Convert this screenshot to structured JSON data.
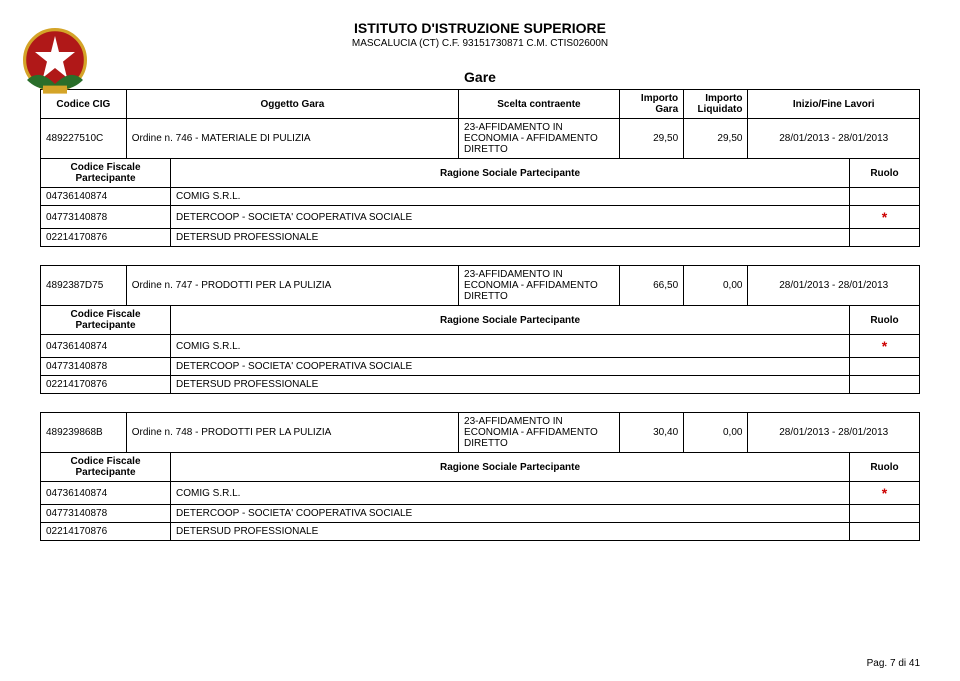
{
  "header": {
    "title": "ISTITUTO D'ISTRUZIONE SUPERIORE",
    "subtitle": "MASCALUCIA (CT) C.F. 93151730871 C.M. CTIS02600N"
  },
  "section_title": "Gare",
  "columns": {
    "cig": "Codice CIG",
    "oggetto": "Oggetto Gara",
    "scelta": "Scelta contraente",
    "importo_gara": "Importo Gara",
    "importo_liq": "Importo Liquidato",
    "inizio_fine": "Inizio/Fine Lavori",
    "codice_fiscale": "Codice Fiscale Partecipante",
    "ragione": "Ragione Sociale Partecipante",
    "ruolo": "Ruolo"
  },
  "blocks": [
    {
      "cig": "489227510C",
      "oggetto": "Ordine n. 746 - MATERIALE DI PULIZIA",
      "scelta": "23-AFFIDAMENTO IN ECONOMIA - AFFIDAMENTO DIRETTO",
      "importo_gara": "29,50",
      "importo_liq": "29,50",
      "date": "28/01/2013 - 28/01/2013",
      "rows": [
        {
          "cf": "04736140874",
          "rs": "COMIG S.R.L.",
          "star": false
        },
        {
          "cf": "04773140878",
          "rs": "DETERCOOP - SOCIETA' COOPERATIVA SOCIALE",
          "star": true
        },
        {
          "cf": "02214170876",
          "rs": "DETERSUD PROFESSIONALE",
          "star": false
        }
      ],
      "show_header": true
    },
    {
      "cig": "4892387D75",
      "oggetto": "Ordine n. 747 - PRODOTTI PER LA PULIZIA",
      "scelta": "23-AFFIDAMENTO IN ECONOMIA - AFFIDAMENTO DIRETTO",
      "importo_gara": "66,50",
      "importo_liq": "0,00",
      "date": "28/01/2013 - 28/01/2013",
      "rows": [
        {
          "cf": "04736140874",
          "rs": "COMIG S.R.L.",
          "star": true
        },
        {
          "cf": "04773140878",
          "rs": "DETERCOOP - SOCIETA' COOPERATIVA SOCIALE",
          "star": false
        },
        {
          "cf": "02214170876",
          "rs": "DETERSUD PROFESSIONALE",
          "star": false
        }
      ],
      "show_header": false
    },
    {
      "cig": "489239868B",
      "oggetto": "Ordine n. 748 - PRODOTTI PER LA PULIZIA",
      "scelta": "23-AFFIDAMENTO IN ECONOMIA - AFFIDAMENTO DIRETTO",
      "importo_gara": "30,40",
      "importo_liq": "0,00",
      "date": "28/01/2013 - 28/01/2013",
      "rows": [
        {
          "cf": "04736140874",
          "rs": "COMIG S.R.L.",
          "star": true
        },
        {
          "cf": "04773140878",
          "rs": "DETERCOOP - SOCIETA' COOPERATIVA SOCIALE",
          "star": false
        },
        {
          "cf": "02214170876",
          "rs": "DETERSUD PROFESSIONALE",
          "star": false
        }
      ],
      "show_header": false
    }
  ],
  "footer": "Pag. 7 di 41",
  "logo_colors": {
    "outer": "#d4a428",
    "inner": "#b01818",
    "leaves": "#2a6e2a"
  }
}
